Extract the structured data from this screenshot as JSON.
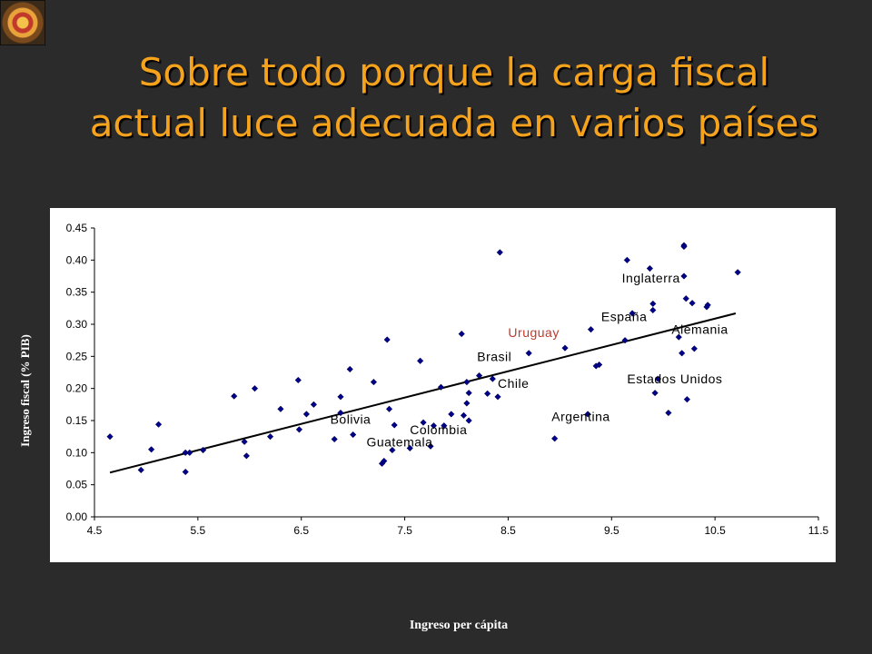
{
  "slide": {
    "title_line1": "Sobre todo porque la carga fiscal",
    "title_line2": "actual luce adecuada en varios países"
  },
  "colors": {
    "background": "#2b2b2b",
    "title": "#f5a21c",
    "points": "#00008b",
    "highlight": "#c0392b"
  },
  "chart_data": {
    "type": "scatter",
    "xlabel": "Ingreso per cápita",
    "ylabel": "Ingreso  fiscal (% PIB)",
    "xlim": [
      4.5,
      11.5
    ],
    "ylim": [
      0.0,
      0.45
    ],
    "xticks": [
      "4.5",
      "5.5",
      "6.5",
      "7.5",
      "8.5",
      "9.5",
      "10.5",
      "11.5"
    ],
    "yticks": [
      "0.00",
      "0.05",
      "0.10",
      "0.15",
      "0.20",
      "0.25",
      "0.30",
      "0.35",
      "0.40",
      "0.45"
    ],
    "grid": false,
    "trendline": {
      "x": [
        4.65,
        10.7
      ],
      "y": [
        0.069,
        0.317
      ]
    },
    "points": [
      [
        4.65,
        0.125
      ],
      [
        4.95,
        0.073
      ],
      [
        5.05,
        0.105
      ],
      [
        5.12,
        0.144
      ],
      [
        5.38,
        0.1
      ],
      [
        5.38,
        0.07
      ],
      [
        5.42,
        0.1
      ],
      [
        5.55,
        0.104
      ],
      [
        5.85,
        0.188
      ],
      [
        5.95,
        0.117
      ],
      [
        5.97,
        0.095
      ],
      [
        6.05,
        0.2
      ],
      [
        6.2,
        0.125
      ],
      [
        6.3,
        0.168
      ],
      [
        6.47,
        0.213
      ],
      [
        6.48,
        0.136
      ],
      [
        6.55,
        0.16
      ],
      [
        6.62,
        0.175
      ],
      [
        6.82,
        0.121
      ],
      [
        6.88,
        0.187
      ],
      [
        6.88,
        0.162
      ],
      [
        6.97,
        0.23
      ],
      [
        7.0,
        0.128
      ],
      [
        7.2,
        0.21
      ],
      [
        7.28,
        0.083
      ],
      [
        7.3,
        0.087
      ],
      [
        7.33,
        0.276
      ],
      [
        7.35,
        0.168
      ],
      [
        7.38,
        0.104
      ],
      [
        7.4,
        0.143
      ],
      [
        7.55,
        0.107
      ],
      [
        7.65,
        0.243
      ],
      [
        7.68,
        0.147
      ],
      [
        7.75,
        0.11
      ],
      [
        7.78,
        0.142
      ],
      [
        7.85,
        0.202
      ],
      [
        7.88,
        0.142
      ],
      [
        7.95,
        0.16
      ],
      [
        8.05,
        0.285
      ],
      [
        8.07,
        0.158
      ],
      [
        8.1,
        0.177
      ],
      [
        8.1,
        0.21
      ],
      [
        8.12,
        0.193
      ],
      [
        8.12,
        0.15
      ],
      [
        8.22,
        0.22
      ],
      [
        8.3,
        0.192
      ],
      [
        8.35,
        0.215
      ],
      [
        8.4,
        0.187
      ],
      [
        8.42,
        0.412
      ],
      [
        8.7,
        0.255
      ],
      [
        8.95,
        0.122
      ],
      [
        9.05,
        0.263
      ],
      [
        9.27,
        0.16
      ],
      [
        9.3,
        0.292
      ],
      [
        9.35,
        0.235
      ],
      [
        9.38,
        0.237
      ],
      [
        9.63,
        0.275
      ],
      [
        9.65,
        0.4
      ],
      [
        9.7,
        0.317
      ],
      [
        9.87,
        0.387
      ],
      [
        9.9,
        0.332
      ],
      [
        9.9,
        0.322
      ],
      [
        9.92,
        0.193
      ],
      [
        9.95,
        0.215
      ],
      [
        10.05,
        0.162
      ],
      [
        10.15,
        0.28
      ],
      [
        10.18,
        0.255
      ],
      [
        10.2,
        0.423
      ],
      [
        10.2,
        0.421
      ],
      [
        10.2,
        0.375
      ],
      [
        10.22,
        0.34
      ],
      [
        10.23,
        0.183
      ],
      [
        10.28,
        0.333
      ],
      [
        10.3,
        0.262
      ],
      [
        10.42,
        0.327
      ],
      [
        10.43,
        0.33
      ],
      [
        10.72,
        0.381
      ]
    ],
    "annotations": [
      {
        "text": "Inglaterra",
        "x": 9.6,
        "y": 0.365
      },
      {
        "text": "España",
        "x": 9.4,
        "y": 0.305
      },
      {
        "text": "Alemania",
        "x": 10.08,
        "y": 0.285
      },
      {
        "text": "Uruguay",
        "x": 8.5,
        "y": 0.28,
        "highlight": true
      },
      {
        "text": "Brasil",
        "x": 8.2,
        "y": 0.243
      },
      {
        "text": "Chile",
        "x": 8.4,
        "y": 0.201
      },
      {
        "text": "Estados Unidos",
        "x": 9.65,
        "y": 0.208
      },
      {
        "text": "Argentina",
        "x": 8.92,
        "y": 0.149
      },
      {
        "text": "Bolivia",
        "x": 6.78,
        "y": 0.145
      },
      {
        "text": "Colombia",
        "x": 7.55,
        "y": 0.129
      },
      {
        "text": "Guatemala",
        "x": 7.13,
        "y": 0.11
      }
    ]
  }
}
